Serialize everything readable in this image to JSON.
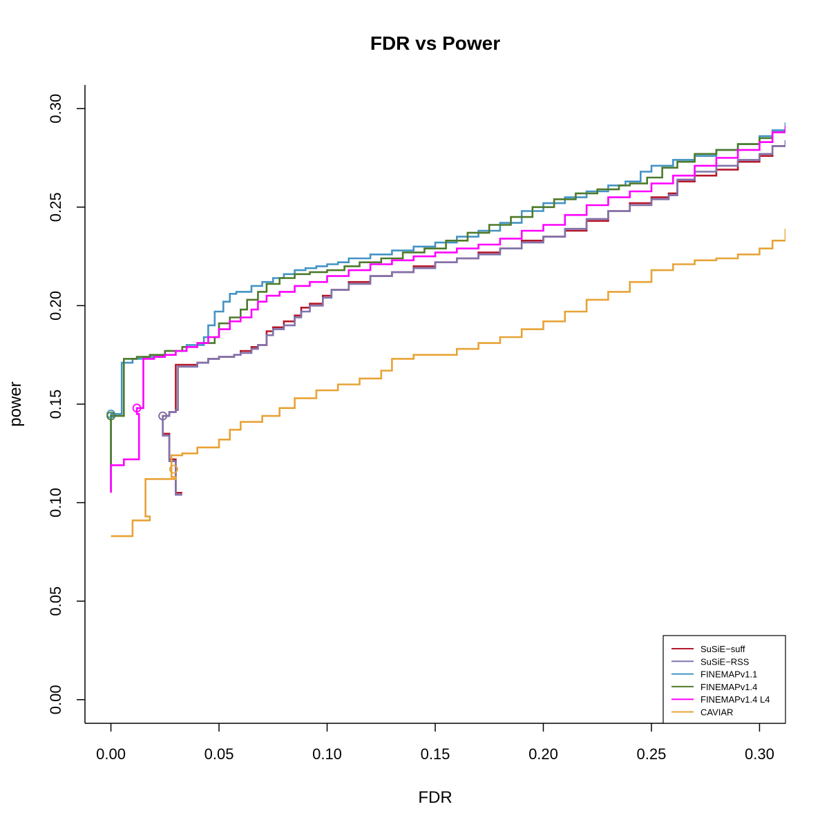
{
  "chart_data": {
    "type": "line",
    "title": "FDR vs Power",
    "xlabel": "FDR",
    "ylabel": "power",
    "xlim": [
      -0.012,
      0.312
    ],
    "ylim": [
      -0.012,
      0.312
    ],
    "xticks": [
      "0.00",
      "0.05",
      "0.10",
      "0.15",
      "0.20",
      "0.25",
      "0.30"
    ],
    "yticks": [
      "0.00",
      "0.05",
      "0.10",
      "0.15",
      "0.20",
      "0.25",
      "0.30"
    ],
    "grid": false,
    "legend_position": "bottom-right",
    "series": [
      {
        "name": "SuSiE−suff",
        "color": "#b2182b",
        "marker": {
          "x": 0.024,
          "y": 0.144
        },
        "x": [
          0.033,
          0.03,
          0.027,
          0.024,
          0.027,
          0.03,
          0.03,
          0.033,
          0.04,
          0.045,
          0.05,
          0.057,
          0.06,
          0.065,
          0.068,
          0.072,
          0.075,
          0.08,
          0.085,
          0.088,
          0.092,
          0.098,
          0.102,
          0.11,
          0.12,
          0.13,
          0.14,
          0.15,
          0.16,
          0.17,
          0.18,
          0.19,
          0.2,
          0.21,
          0.22,
          0.23,
          0.24,
          0.25,
          0.258,
          0.262,
          0.27,
          0.28,
          0.29,
          0.3,
          0.306,
          0.312
        ],
        "y": [
          0.105,
          0.122,
          0.135,
          0.144,
          0.146,
          0.147,
          0.17,
          0.17,
          0.171,
          0.173,
          0.174,
          0.175,
          0.177,
          0.179,
          0.18,
          0.187,
          0.189,
          0.192,
          0.195,
          0.199,
          0.201,
          0.205,
          0.208,
          0.212,
          0.215,
          0.217,
          0.22,
          0.222,
          0.224,
          0.227,
          0.229,
          0.233,
          0.235,
          0.238,
          0.243,
          0.248,
          0.252,
          0.255,
          0.257,
          0.263,
          0.266,
          0.269,
          0.273,
          0.276,
          0.281,
          0.282
        ]
      },
      {
        "name": "SuSiE−RSS",
        "color": "#8073ac",
        "marker": {
          "x": 0.024,
          "y": 0.144
        },
        "x": [
          0.033,
          0.03,
          0.027,
          0.024,
          0.027,
          0.03,
          0.031,
          0.033,
          0.04,
          0.045,
          0.05,
          0.057,
          0.06,
          0.065,
          0.068,
          0.072,
          0.075,
          0.08,
          0.085,
          0.088,
          0.092,
          0.098,
          0.102,
          0.11,
          0.12,
          0.13,
          0.14,
          0.15,
          0.16,
          0.17,
          0.18,
          0.19,
          0.2,
          0.21,
          0.22,
          0.23,
          0.24,
          0.25,
          0.258,
          0.262,
          0.27,
          0.28,
          0.29,
          0.3,
          0.306,
          0.312
        ],
        "y": [
          0.104,
          0.121,
          0.134,
          0.144,
          0.146,
          0.147,
          0.169,
          0.169,
          0.171,
          0.173,
          0.174,
          0.175,
          0.176,
          0.178,
          0.18,
          0.185,
          0.188,
          0.19,
          0.194,
          0.197,
          0.2,
          0.204,
          0.208,
          0.211,
          0.215,
          0.217,
          0.219,
          0.222,
          0.224,
          0.226,
          0.229,
          0.232,
          0.235,
          0.239,
          0.244,
          0.248,
          0.251,
          0.254,
          0.256,
          0.264,
          0.268,
          0.271,
          0.274,
          0.277,
          0.281,
          0.284
        ]
      },
      {
        "name": "FINEMAPv1.1",
        "color": "#4393c3",
        "marker": {
          "x": 0.0,
          "y": 0.145
        },
        "x": [
          0.0,
          0.0,
          0.005,
          0.005,
          0.01,
          0.015,
          0.025,
          0.035,
          0.043,
          0.045,
          0.048,
          0.052,
          0.055,
          0.058,
          0.065,
          0.07,
          0.075,
          0.08,
          0.085,
          0.09,
          0.095,
          0.1,
          0.105,
          0.11,
          0.12,
          0.13,
          0.14,
          0.15,
          0.16,
          0.17,
          0.18,
          0.19,
          0.2,
          0.21,
          0.22,
          0.23,
          0.238,
          0.245,
          0.25,
          0.26,
          0.27,
          0.28,
          0.29,
          0.3,
          0.306,
          0.312
        ],
        "y": [
          0.106,
          0.145,
          0.146,
          0.171,
          0.173,
          0.174,
          0.177,
          0.18,
          0.184,
          0.19,
          0.197,
          0.202,
          0.206,
          0.207,
          0.21,
          0.212,
          0.214,
          0.216,
          0.218,
          0.219,
          0.22,
          0.221,
          0.222,
          0.224,
          0.226,
          0.228,
          0.23,
          0.232,
          0.235,
          0.238,
          0.242,
          0.248,
          0.252,
          0.255,
          0.258,
          0.261,
          0.263,
          0.268,
          0.271,
          0.274,
          0.276,
          0.279,
          0.282,
          0.286,
          0.289,
          0.293
        ]
      },
      {
        "name": "FINEMAPv1.4",
        "color": "#4d7a2a",
        "marker": {
          "x": 0.0,
          "y": 0.144
        },
        "x": [
          0.0,
          0.0,
          0.006,
          0.006,
          0.012,
          0.018,
          0.025,
          0.033,
          0.04,
          0.048,
          0.05,
          0.055,
          0.06,
          0.063,
          0.068,
          0.072,
          0.078,
          0.085,
          0.092,
          0.1,
          0.108,
          0.115,
          0.125,
          0.135,
          0.145,
          0.155,
          0.165,
          0.175,
          0.185,
          0.195,
          0.205,
          0.215,
          0.225,
          0.235,
          0.24,
          0.248,
          0.255,
          0.262,
          0.27,
          0.28,
          0.29,
          0.3,
          0.306,
          0.312
        ],
        "y": [
          0.119,
          0.144,
          0.147,
          0.173,
          0.174,
          0.175,
          0.177,
          0.179,
          0.181,
          0.184,
          0.191,
          0.194,
          0.198,
          0.203,
          0.207,
          0.211,
          0.214,
          0.216,
          0.217,
          0.218,
          0.22,
          0.222,
          0.224,
          0.227,
          0.229,
          0.233,
          0.237,
          0.241,
          0.245,
          0.25,
          0.254,
          0.257,
          0.259,
          0.261,
          0.262,
          0.265,
          0.27,
          0.273,
          0.277,
          0.279,
          0.282,
          0.285,
          0.288,
          0.29
        ]
      },
      {
        "name": "FINEMAPv1.4 L4",
        "color": "#ff00ff",
        "marker": {
          "x": 0.012,
          "y": 0.148
        },
        "x": [
          0.0,
          0.0,
          0.006,
          0.013,
          0.013,
          0.012,
          0.015,
          0.015,
          0.02,
          0.025,
          0.03,
          0.035,
          0.04,
          0.045,
          0.05,
          0.055,
          0.06,
          0.065,
          0.068,
          0.072,
          0.078,
          0.085,
          0.092,
          0.1,
          0.11,
          0.12,
          0.13,
          0.14,
          0.15,
          0.16,
          0.17,
          0.18,
          0.19,
          0.2,
          0.21,
          0.22,
          0.23,
          0.24,
          0.25,
          0.26,
          0.27,
          0.28,
          0.29,
          0.3,
          0.306,
          0.312
        ],
        "y": [
          0.105,
          0.119,
          0.122,
          0.124,
          0.145,
          0.148,
          0.149,
          0.173,
          0.174,
          0.175,
          0.177,
          0.179,
          0.181,
          0.184,
          0.188,
          0.192,
          0.194,
          0.198,
          0.202,
          0.205,
          0.207,
          0.21,
          0.212,
          0.215,
          0.218,
          0.221,
          0.223,
          0.225,
          0.227,
          0.229,
          0.231,
          0.234,
          0.238,
          0.241,
          0.246,
          0.251,
          0.255,
          0.258,
          0.262,
          0.266,
          0.271,
          0.275,
          0.279,
          0.283,
          0.288,
          0.291
        ]
      },
      {
        "name": "CAVIAR",
        "color": "#e7a336",
        "marker": {
          "x": 0.029,
          "y": 0.117
        },
        "x": [
          0.0,
          0.01,
          0.01,
          0.018,
          0.016,
          0.03,
          0.028,
          0.033,
          0.04,
          0.05,
          0.055,
          0.06,
          0.07,
          0.078,
          0.085,
          0.095,
          0.105,
          0.115,
          0.125,
          0.13,
          0.14,
          0.15,
          0.16,
          0.17,
          0.18,
          0.19,
          0.2,
          0.21,
          0.22,
          0.23,
          0.24,
          0.25,
          0.26,
          0.27,
          0.28,
          0.29,
          0.3,
          0.306,
          0.312
        ],
        "y": [
          0.083,
          0.086,
          0.091,
          0.093,
          0.112,
          0.113,
          0.124,
          0.125,
          0.128,
          0.132,
          0.137,
          0.141,
          0.144,
          0.148,
          0.153,
          0.157,
          0.16,
          0.163,
          0.167,
          0.173,
          0.175,
          0.175,
          0.178,
          0.181,
          0.184,
          0.188,
          0.192,
          0.197,
          0.203,
          0.207,
          0.212,
          0.218,
          0.221,
          0.223,
          0.224,
          0.226,
          0.229,
          0.233,
          0.239
        ]
      }
    ]
  }
}
